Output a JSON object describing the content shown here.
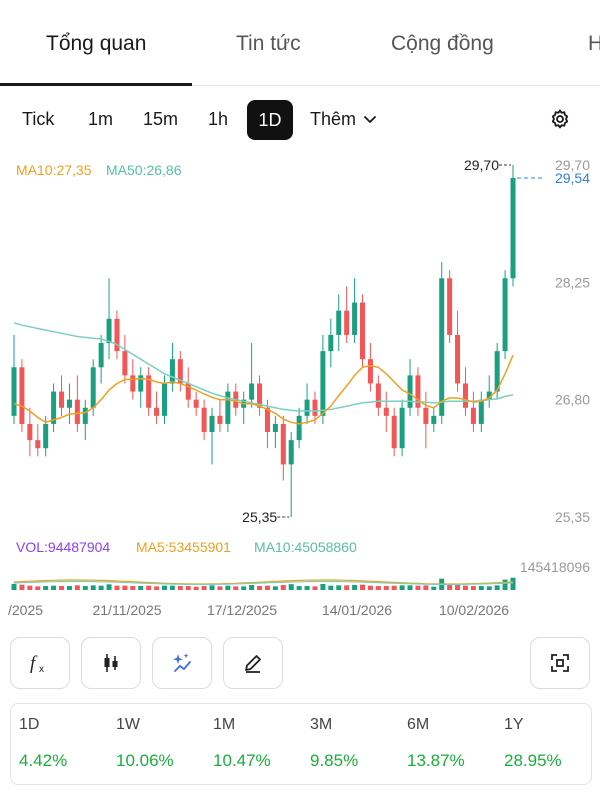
{
  "tabs": [
    {
      "label": "Tổng quan",
      "active": true
    },
    {
      "label": "Tin tức",
      "active": false
    },
    {
      "label": "Cộng đồng",
      "active": false
    },
    {
      "label": "H",
      "active": false
    }
  ],
  "timeframes": [
    "Tick",
    "1m",
    "15m",
    "1h",
    "1D"
  ],
  "timeframe_active": "1D",
  "more_label": "Thêm",
  "icons": {
    "settings": "gear-icon",
    "more": "chevron-down-icon",
    "tools": [
      "function-icon",
      "candlestick-icon",
      "ai-sparkle-icon",
      "pencil-icon",
      "fullscreen-icon"
    ]
  },
  "colors": {
    "up": "#1a9f80",
    "down": "#f25656",
    "ma10": "#f0a020",
    "ma50": "#79d1bf",
    "vol_label": "#8a3ffc",
    "current_price": "#2d7fd6",
    "positive": "#1aae3a"
  },
  "chart_data": {
    "type": "candlestick",
    "indicators": {
      "ma10_label": "MA10:27,35",
      "ma50_label": "MA50:26,86",
      "vol_label": "VOL:94487904",
      "vol_ma5_label": "MA5:53455901",
      "vol_ma10_label": "MA10:45058860"
    },
    "y_ticks": [
      "29,70",
      "28,25",
      "26,80",
      "25,35"
    ],
    "y_range": [
      25.35,
      29.7
    ],
    "volume_max_label": "145418096",
    "volume_max": 145418096,
    "x_ticks": [
      "/2025",
      "21/11/2025",
      "17/12/2025",
      "14/01/2026",
      "10/02/2026"
    ],
    "high_marker": "29,70",
    "low_marker": "25,35",
    "current_price": "29,54",
    "series": [
      {
        "name": "candles",
        "ohlc": [
          [
            26.6,
            27.6,
            26.5,
            27.2
          ],
          [
            27.2,
            27.3,
            26.4,
            26.5
          ],
          [
            26.5,
            26.7,
            26.1,
            26.3
          ],
          [
            26.3,
            26.5,
            26.1,
            26.2
          ],
          [
            26.2,
            26.6,
            26.1,
            26.5
          ],
          [
            26.5,
            27.0,
            26.4,
            26.9
          ],
          [
            26.9,
            27.1,
            26.6,
            26.7
          ],
          [
            26.7,
            27.0,
            26.5,
            26.8
          ],
          [
            26.8,
            27.1,
            26.4,
            26.5
          ],
          [
            26.5,
            26.8,
            26.3,
            26.7
          ],
          [
            26.7,
            27.3,
            26.6,
            27.2
          ],
          [
            27.2,
            27.6,
            27.0,
            27.5
          ],
          [
            27.5,
            28.3,
            27.3,
            27.8
          ],
          [
            27.8,
            27.9,
            27.3,
            27.4
          ],
          [
            27.4,
            27.6,
            27.0,
            27.1
          ],
          [
            27.1,
            27.3,
            26.8,
            26.9
          ],
          [
            26.9,
            27.2,
            26.7,
            27.1
          ],
          [
            27.1,
            27.2,
            26.6,
            26.7
          ],
          [
            26.7,
            26.9,
            26.5,
            26.6
          ],
          [
            26.6,
            27.1,
            26.5,
            27.0
          ],
          [
            27.0,
            27.5,
            26.9,
            27.3
          ],
          [
            27.3,
            27.4,
            26.9,
            27.0
          ],
          [
            27.0,
            27.2,
            26.7,
            26.8
          ],
          [
            26.8,
            26.9,
            26.6,
            26.7
          ],
          [
            26.7,
            26.8,
            26.3,
            26.4
          ],
          [
            26.4,
            26.7,
            26.0,
            26.6
          ],
          [
            26.6,
            26.8,
            26.4,
            26.5
          ],
          [
            26.5,
            27.0,
            26.4,
            26.9
          ],
          [
            26.9,
            27.0,
            26.6,
            26.7
          ],
          [
            26.7,
            26.9,
            26.5,
            26.8
          ],
          [
            26.8,
            27.5,
            26.7,
            27.0
          ],
          [
            27.0,
            27.1,
            26.6,
            26.7
          ],
          [
            26.7,
            26.8,
            26.2,
            26.4
          ],
          [
            26.4,
            26.6,
            26.2,
            26.5
          ],
          [
            26.5,
            26.6,
            25.8,
            26.0
          ],
          [
            26.0,
            26.4,
            25.35,
            26.3
          ],
          [
            26.3,
            26.7,
            26.2,
            26.6
          ],
          [
            26.6,
            27.0,
            26.5,
            26.8
          ],
          [
            26.8,
            26.9,
            26.5,
            26.6
          ],
          [
            26.6,
            27.6,
            26.5,
            27.4
          ],
          [
            27.4,
            27.8,
            27.2,
            27.6
          ],
          [
            27.6,
            28.1,
            27.4,
            27.9
          ],
          [
            27.9,
            28.2,
            27.5,
            27.6
          ],
          [
            27.6,
            28.3,
            27.5,
            28.0
          ],
          [
            28.0,
            28.1,
            27.2,
            27.3
          ],
          [
            27.3,
            27.5,
            26.9,
            27.0
          ],
          [
            27.0,
            27.1,
            26.6,
            26.7
          ],
          [
            26.7,
            26.9,
            26.4,
            26.6
          ],
          [
            26.6,
            26.7,
            26.1,
            26.2
          ],
          [
            26.2,
            26.8,
            26.1,
            26.7
          ],
          [
            26.7,
            27.3,
            26.6,
            27.1
          ],
          [
            27.1,
            27.2,
            26.6,
            26.7
          ],
          [
            26.7,
            26.9,
            26.2,
            26.5
          ],
          [
            26.5,
            26.7,
            26.4,
            26.6
          ],
          [
            26.6,
            28.5,
            26.5,
            28.3
          ],
          [
            28.3,
            28.4,
            27.5,
            27.6
          ],
          [
            27.6,
            27.9,
            26.9,
            27.0
          ],
          [
            27.0,
            27.2,
            26.6,
            26.7
          ],
          [
            26.7,
            26.9,
            26.4,
            26.5
          ],
          [
            26.5,
            26.9,
            26.4,
            26.8
          ],
          [
            26.8,
            27.1,
            26.7,
            26.9
          ],
          [
            26.9,
            27.5,
            26.8,
            27.4
          ],
          [
            27.4,
            28.4,
            27.3,
            28.3
          ],
          [
            28.3,
            29.7,
            28.2,
            29.54
          ]
        ]
      }
    ],
    "ma10": [
      26.75,
      26.72,
      26.66,
      26.58,
      26.52,
      26.55,
      26.58,
      26.62,
      26.63,
      26.64,
      26.7,
      26.8,
      26.92,
      27.0,
      27.05,
      27.05,
      27.06,
      27.05,
      27.02,
      27.0,
      27.02,
      27.0,
      26.96,
      26.92,
      26.87,
      26.83,
      26.8,
      26.8,
      26.78,
      26.75,
      26.75,
      26.72,
      26.68,
      26.63,
      26.56,
      26.52,
      26.5,
      26.52,
      26.55,
      26.63,
      26.72,
      26.85,
      26.97,
      27.1,
      27.2,
      27.22,
      27.2,
      27.12,
      27.02,
      26.92,
      26.87,
      26.8,
      26.73,
      26.7,
      26.78,
      26.82,
      26.82,
      26.8,
      26.77,
      26.78,
      26.82,
      26.92,
      27.12,
      27.35
    ],
    "ma50": [
      27.75,
      27.72,
      27.7,
      27.68,
      27.66,
      27.64,
      27.62,
      27.6,
      27.58,
      27.57,
      27.56,
      27.55,
      27.52,
      27.48,
      27.42,
      27.36,
      27.3,
      27.24,
      27.18,
      27.12,
      27.08,
      27.04,
      27.0,
      26.96,
      26.92,
      26.88,
      26.85,
      26.82,
      26.8,
      26.78,
      26.76,
      26.74,
      26.72,
      26.7,
      26.68,
      26.67,
      26.66,
      26.66,
      26.66,
      26.67,
      26.68,
      26.7,
      26.72,
      26.74,
      26.76,
      26.77,
      26.78,
      26.78,
      26.78,
      26.78,
      26.78,
      26.77,
      26.77,
      26.76,
      26.77,
      26.78,
      26.78,
      26.78,
      26.78,
      26.79,
      26.8,
      26.81,
      26.84,
      26.86
    ]
  },
  "performance": [
    {
      "period": "1D",
      "value": "4.42%"
    },
    {
      "period": "1W",
      "value": "10.06%"
    },
    {
      "period": "1M",
      "value": "10.47%"
    },
    {
      "period": "3M",
      "value": "9.85%"
    },
    {
      "period": "6M",
      "value": "13.87%"
    },
    {
      "period": "1Y",
      "value": "28.95%"
    }
  ]
}
